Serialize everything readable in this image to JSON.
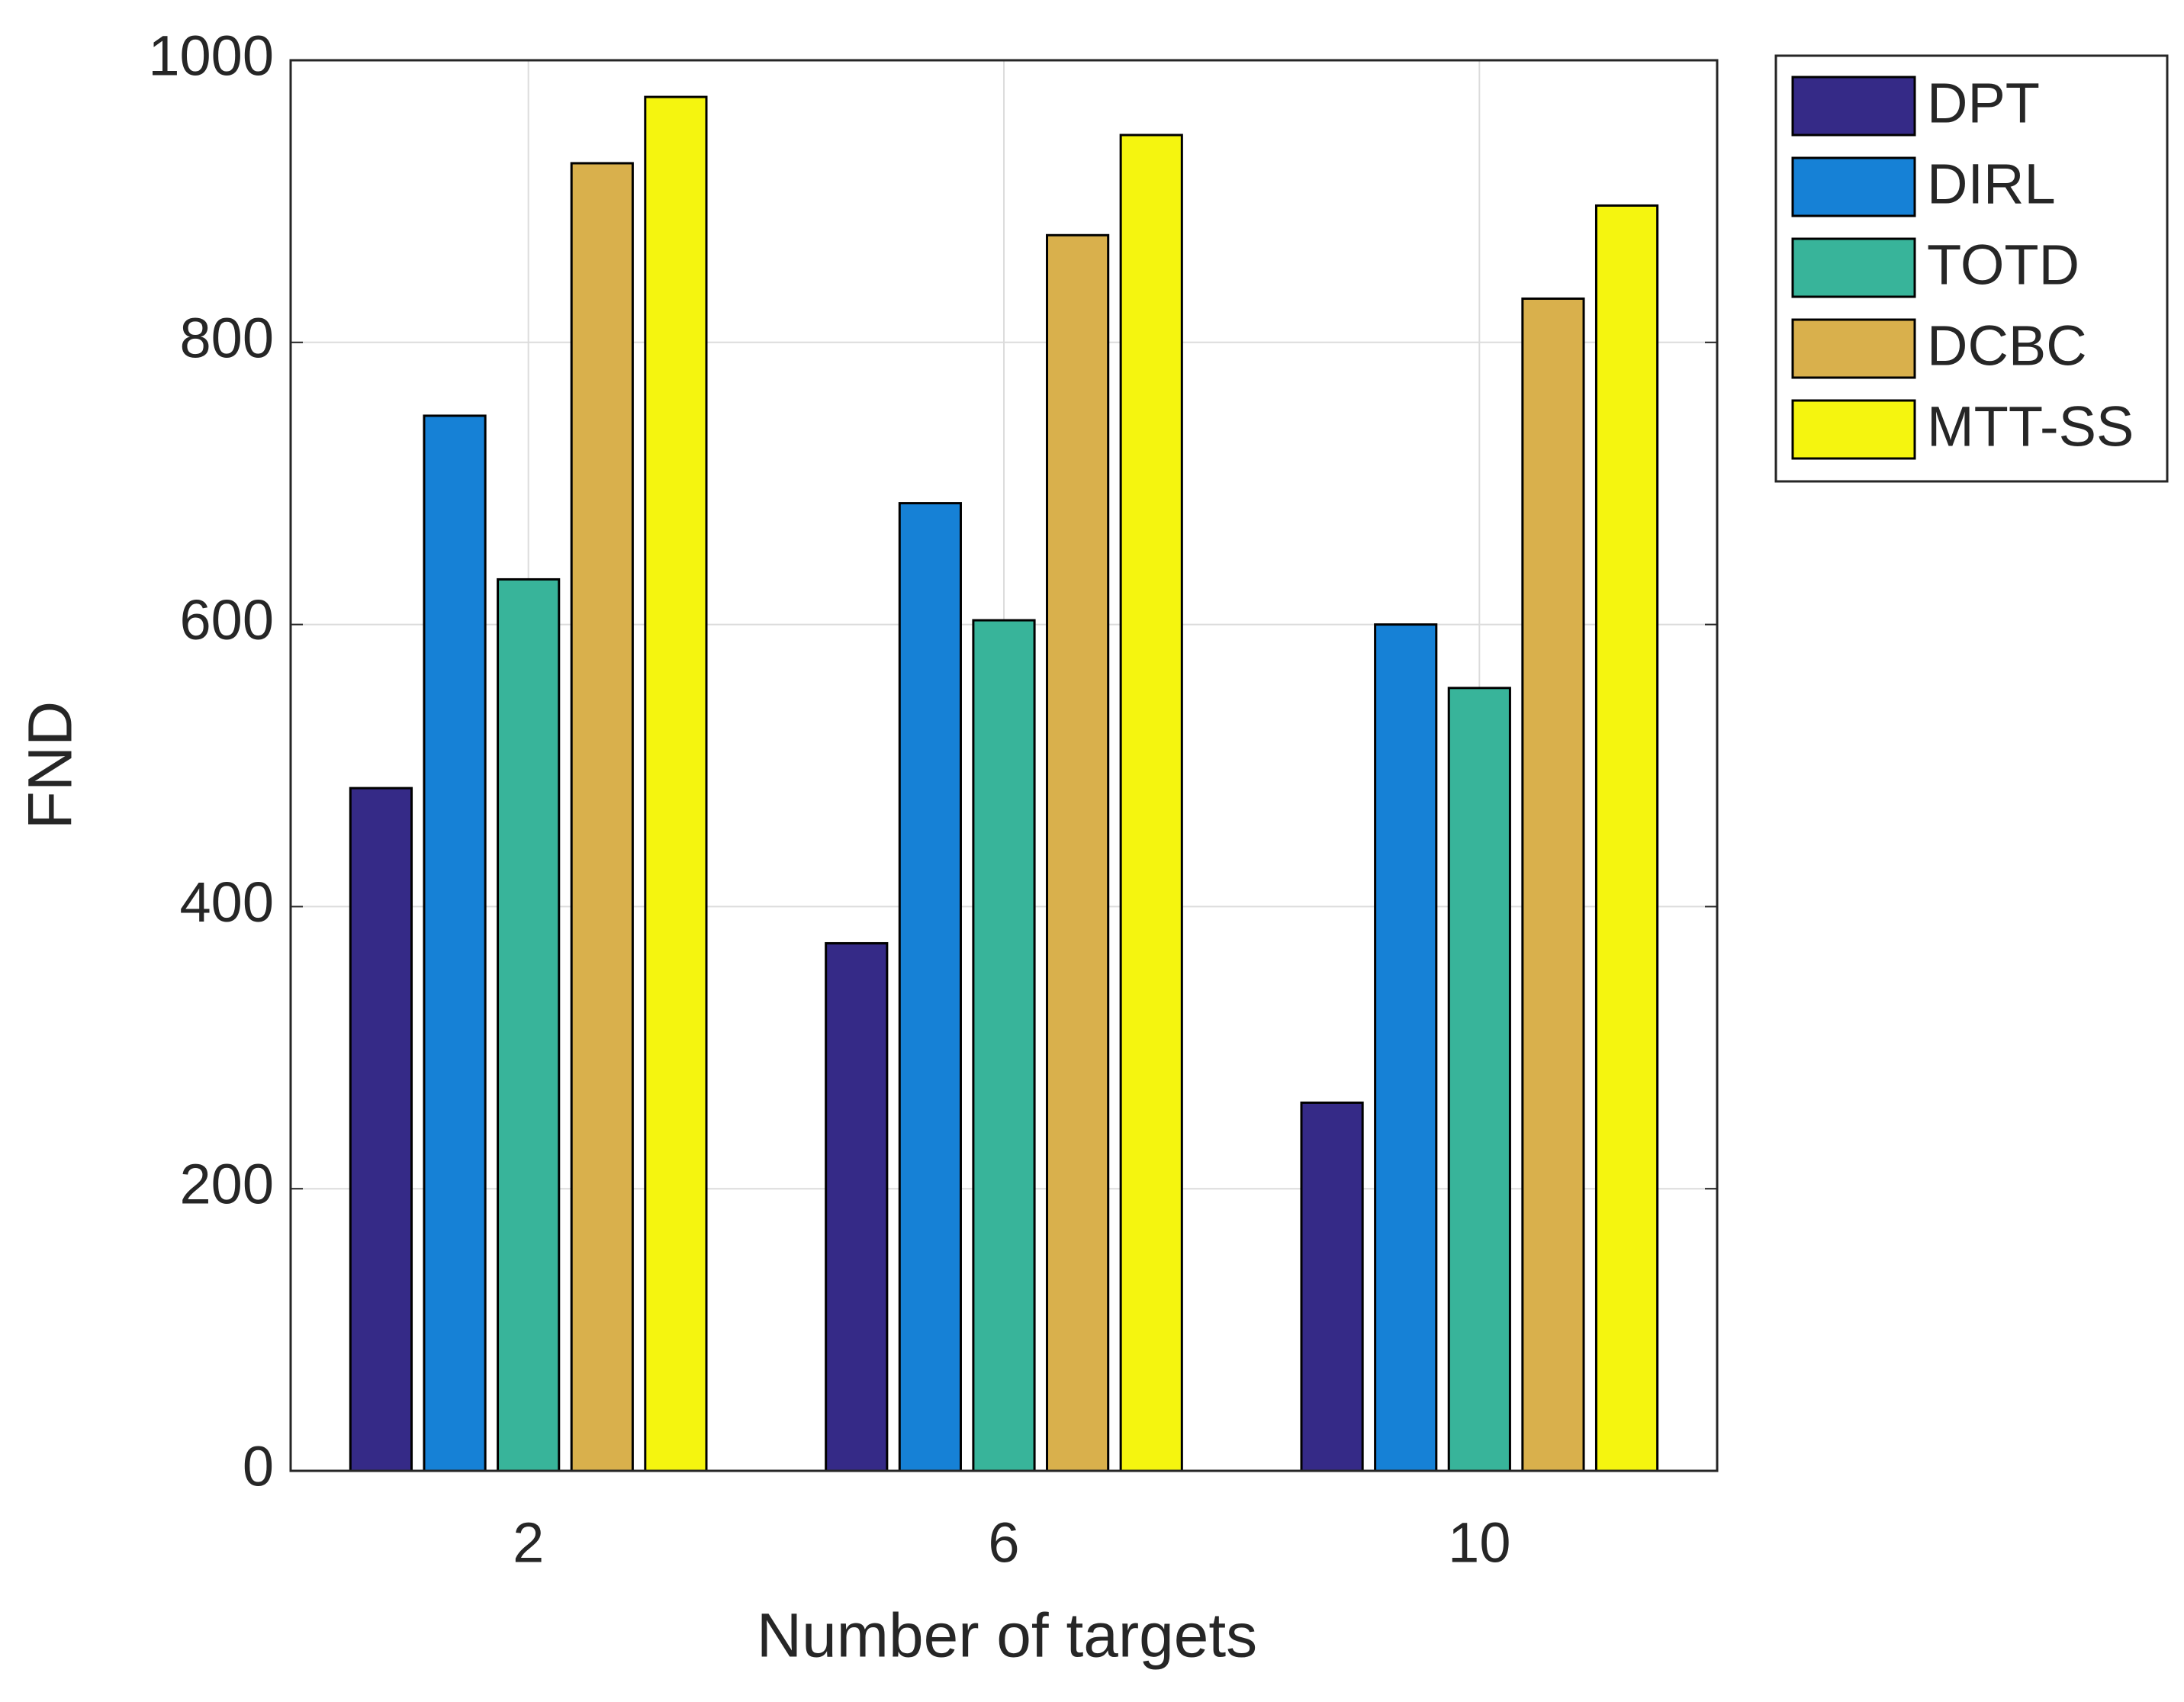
{
  "chart_data": {
    "type": "bar",
    "x_label": "Number of targets",
    "y_label": "FND",
    "categories": [
      "2",
      "6",
      "10"
    ],
    "series": [
      {
        "name": "DPT",
        "color": "#352a87",
        "values": [
          484,
          374,
          261
        ]
      },
      {
        "name": "DIRL",
        "color": "#1681d6",
        "values": [
          748,
          686,
          600
        ]
      },
      {
        "name": "TOTD",
        "color": "#38b49a",
        "values": [
          632,
          603,
          555
        ]
      },
      {
        "name": "DCBC",
        "color": "#d9b04c",
        "values": [
          927,
          876,
          831
        ]
      },
      {
        "name": "MTT-SS",
        "color": "#f5f50f",
        "values": [
          974,
          947,
          897
        ]
      }
    ],
    "ylim": [
      0,
      1000
    ],
    "yticks": [
      0,
      200,
      400,
      600,
      800,
      1000
    ],
    "grid": true,
    "legend": "outside-top-right"
  }
}
